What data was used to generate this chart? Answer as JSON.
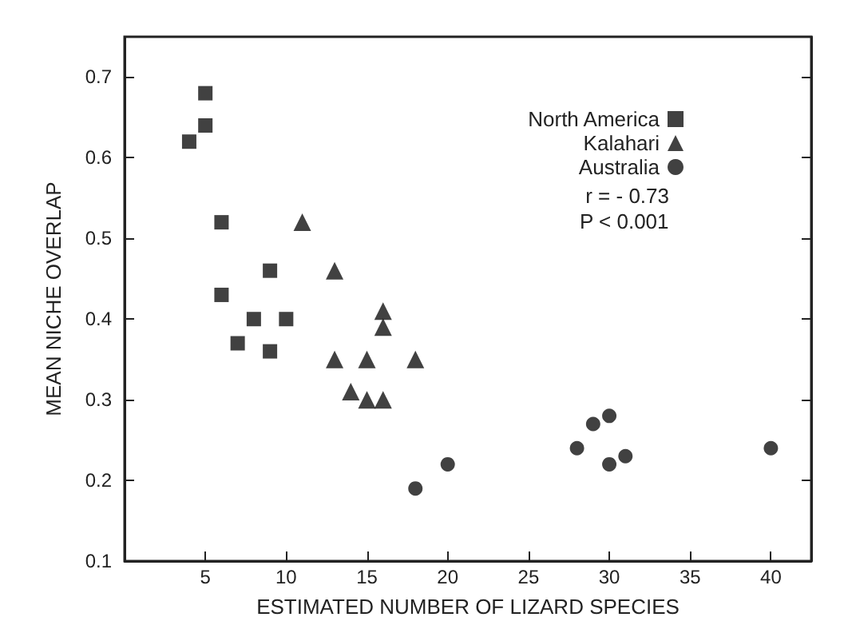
{
  "chart_data": {
    "type": "scatter",
    "xlabel": "ESTIMATED NUMBER OF LIZARD SPECIES",
    "ylabel": "MEAN NICHE OVERLAP",
    "xlim": [
      0,
      42.5
    ],
    "ylim": [
      0.1,
      0.75
    ],
    "xticks": [
      5,
      10,
      15,
      20,
      25,
      30,
      35,
      40
    ],
    "yticks": [
      0.1,
      0.2,
      0.3,
      0.4,
      0.5,
      0.6,
      0.7
    ],
    "grid": false,
    "legend": "top right",
    "series": [
      {
        "name": "North America",
        "color": "#111111",
        "marker": "square",
        "x": [
          5,
          5,
          4,
          6,
          6,
          9,
          8,
          10,
          7,
          9
        ],
        "values": [
          0.68,
          0.64,
          0.62,
          0.52,
          0.43,
          0.46,
          0.4,
          0.4,
          0.37,
          0.36
        ]
      },
      {
        "name": "Kalahari",
        "color": "#111111",
        "marker": "triangle",
        "x": [
          11,
          13,
          16,
          16,
          13,
          15,
          18,
          14,
          15,
          16
        ],
        "values": [
          0.52,
          0.46,
          0.41,
          0.39,
          0.35,
          0.35,
          0.35,
          0.31,
          0.3,
          0.3
        ]
      },
      {
        "name": "Australia",
        "color": "#111111",
        "marker": "circle",
        "x": [
          18,
          20,
          28,
          29,
          30,
          30,
          31,
          40
        ],
        "values": [
          0.19,
          0.22,
          0.24,
          0.27,
          0.28,
          0.22,
          0.23,
          0.24
        ]
      }
    ],
    "annotations": [
      "r = - 0.73",
      "P < 0.001"
    ]
  }
}
